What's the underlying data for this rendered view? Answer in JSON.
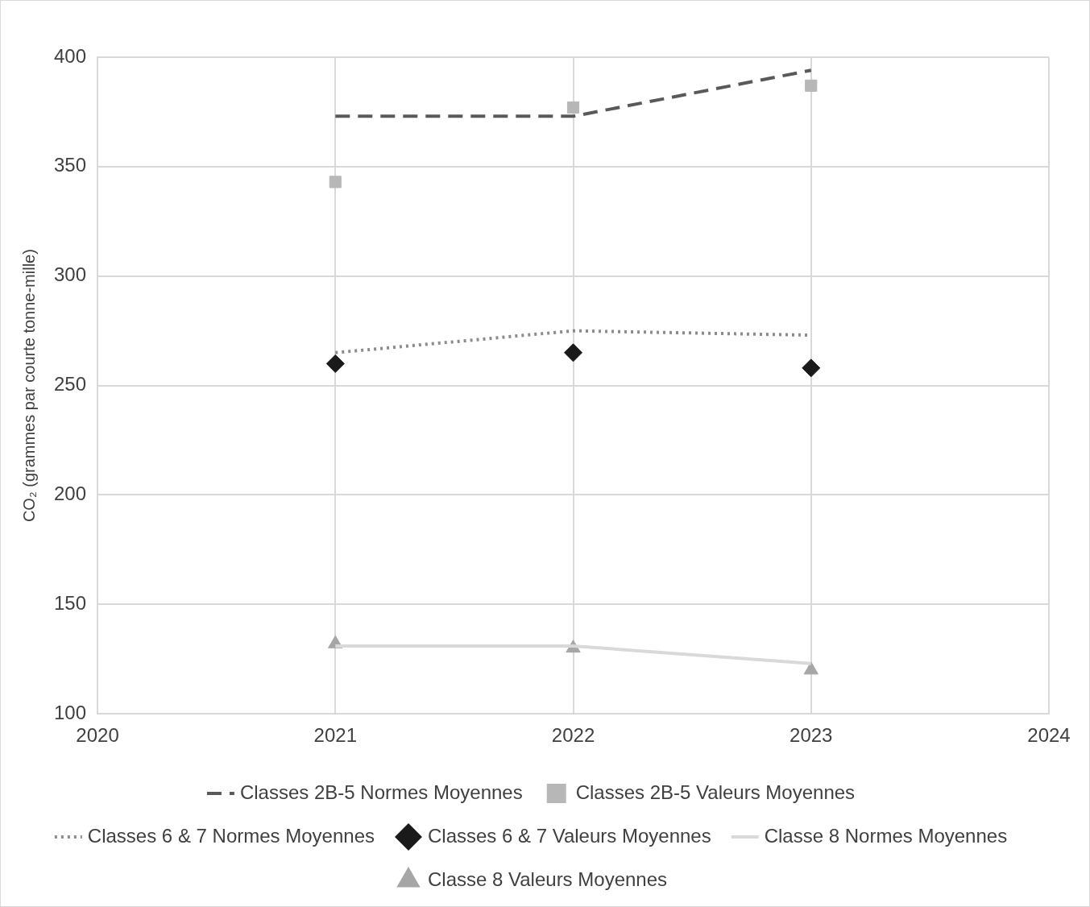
{
  "chart_data": {
    "type": "line",
    "ylabel": "CO₂ (grammes par courte tonne-mille)",
    "x": [
      2021,
      2022,
      2023
    ],
    "xlim": [
      2020,
      2024
    ],
    "xticks": [
      2020,
      2021,
      2022,
      2023,
      2024
    ],
    "ylim": [
      100,
      400
    ],
    "yticks": [
      100,
      150,
      200,
      250,
      300,
      350,
      400
    ],
    "grid": true,
    "legend": "bottom",
    "series": [
      {
        "name": "Classes 2B-5 Normes Moyennes",
        "type": "line",
        "color": "#595959",
        "line_style": "dashed",
        "marker": "none",
        "values": [
          373,
          373,
          394
        ]
      },
      {
        "name": "Classes 2B-5 Valeurs Moyennes",
        "type": "scatter",
        "color": "#b7b7b7",
        "marker": "square",
        "values": [
          343,
          377,
          387
        ]
      },
      {
        "name": "Classes 6 & 7 Normes Moyennes",
        "type": "line",
        "color": "#8c8c8c",
        "line_style": "dotted",
        "marker": "none",
        "values": [
          265,
          275,
          273
        ]
      },
      {
        "name": "Classes 6 & 7 Valeurs Moyennes",
        "type": "scatter",
        "color": "#1a1a1a",
        "marker": "diamond",
        "values": [
          260,
          265,
          258
        ]
      },
      {
        "name": "Classe 8 Normes Moyennes",
        "type": "line",
        "color": "#d9d9d9",
        "line_style": "solid",
        "marker": "none",
        "values": [
          131,
          131,
          123
        ]
      },
      {
        "name": "Classe 8 Valeurs Moyennes",
        "type": "scatter",
        "color": "#a6a6a6",
        "marker": "triangle",
        "values": [
          132,
          130,
          120
        ]
      }
    ]
  }
}
